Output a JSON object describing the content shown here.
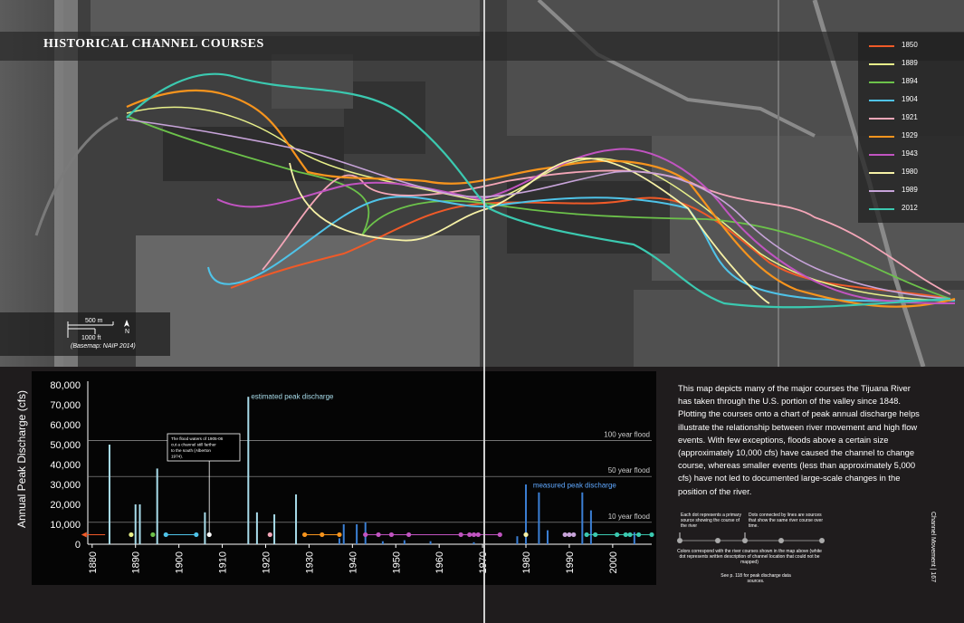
{
  "map": {
    "title": "HISTORICAL CHANNEL COURSES",
    "scale_m": "500 m",
    "scale_ft": "1000 ft",
    "north": "N",
    "basemap_note": "(Basemap: NAIP 2014)",
    "legend": [
      {
        "year": "1850",
        "color": "#f05a28"
      },
      {
        "year": "1889",
        "color": "#e8f08a"
      },
      {
        "year": "1894",
        "color": "#6cc24a"
      },
      {
        "year": "1904",
        "color": "#4fc3e8"
      },
      {
        "year": "1921",
        "color": "#f4a6b8"
      },
      {
        "year": "1929",
        "color": "#f7941d"
      },
      {
        "year": "1943",
        "color": "#c154c1"
      },
      {
        "year": "1980",
        "color": "#f6f1a6"
      },
      {
        "year": "1989",
        "color": "#c7a3d9"
      },
      {
        "year": "2012",
        "color": "#3bc9b0"
      }
    ]
  },
  "chart_data": {
    "type": "bar",
    "ylabel": "Annual Peak Discharge (cfs)",
    "y_ticks": [
      "0",
      "10,000",
      "20,000",
      "30,000",
      "40,000",
      "50,000",
      "60,000",
      "70,000",
      "80,000"
    ],
    "x_ticks": [
      "1880",
      "1890",
      "1900",
      "1910",
      "1920",
      "1930",
      "1940",
      "1950",
      "1960",
      "1970",
      "1980",
      "1990",
      "2000"
    ],
    "ylim": [
      0,
      80000
    ],
    "xlim": [
      1879,
      2009
    ],
    "flood_lines": [
      {
        "label": "100 year flood",
        "value": 52000
      },
      {
        "label": "50 year flood",
        "value": 34000
      },
      {
        "label": "10 year flood",
        "value": 11000
      }
    ],
    "annotations": {
      "estimated": "estimated peak discharge",
      "measured": "measured peak discharge",
      "flood_note": "The flood waters of 1905-06 cut a channel still farther to the south (Alberton 1974)."
    },
    "estimated_bars": [
      {
        "x": 1884,
        "y": 50000
      },
      {
        "x": 1890,
        "y": 20000
      },
      {
        "x": 1891,
        "y": 20000
      },
      {
        "x": 1895,
        "y": 38000
      },
      {
        "x": 1906,
        "y": 16000
      },
      {
        "x": 1916,
        "y": 74000
      },
      {
        "x": 1918,
        "y": 16000
      },
      {
        "x": 1922,
        "y": 15000
      },
      {
        "x": 1927,
        "y": 25000
      }
    ],
    "measured_bars": [
      {
        "x": 1937,
        "y": 3000
      },
      {
        "x": 1938,
        "y": 10000
      },
      {
        "x": 1941,
        "y": 10000
      },
      {
        "x": 1943,
        "y": 11000
      },
      {
        "x": 1947,
        "y": 1500
      },
      {
        "x": 1952,
        "y": 2000
      },
      {
        "x": 1958,
        "y": 1500
      },
      {
        "x": 1968,
        "y": 1000
      },
      {
        "x": 1978,
        "y": 4000
      },
      {
        "x": 1980,
        "y": 30000
      },
      {
        "x": 1983,
        "y": 26000
      },
      {
        "x": 1985,
        "y": 7000
      },
      {
        "x": 1993,
        "y": 26000
      },
      {
        "x": 1995,
        "y": 17000
      },
      {
        "x": 2005,
        "y": 6000
      }
    ],
    "course_points": [
      {
        "year": 1850,
        "color": "#f05a28"
      },
      {
        "year": 1889,
        "color": "#e8f08a"
      },
      {
        "year": 1894,
        "color": "#6cc24a"
      },
      {
        "year": 1897,
        "color": "#4fc3e8"
      },
      {
        "year": 1904,
        "color": "#4fc3e8"
      },
      {
        "year": 1907,
        "color": "#ffffff"
      },
      {
        "year": 1921,
        "color": "#f4a6b8"
      },
      {
        "year": 1929,
        "color": "#f7941d"
      },
      {
        "year": 1933,
        "color": "#f7941d"
      },
      {
        "year": 1937,
        "color": "#f7941d"
      },
      {
        "year": 1943,
        "color": "#c154c1"
      },
      {
        "year": 1946,
        "color": "#c154c1"
      },
      {
        "year": 1949,
        "color": "#c154c1"
      },
      {
        "year": 1953,
        "color": "#c154c1"
      },
      {
        "year": 1965,
        "color": "#c154c1"
      },
      {
        "year": 1967,
        "color": "#c154c1"
      },
      {
        "year": 1968,
        "color": "#c154c1"
      },
      {
        "year": 1969,
        "color": "#c154c1"
      },
      {
        "year": 1974,
        "color": "#c154c1"
      },
      {
        "year": 1980,
        "color": "#f6f1a6"
      },
      {
        "year": 1989,
        "color": "#c7a3d9"
      },
      {
        "year": 1990,
        "color": "#c7a3d9"
      },
      {
        "year": 1991,
        "color": "#c7a3d9"
      },
      {
        "year": 1994,
        "color": "#3bc9b0"
      },
      {
        "year": 1996,
        "color": "#3bc9b0"
      },
      {
        "year": 2001,
        "color": "#3bc9b0"
      },
      {
        "year": 2003,
        "color": "#3bc9b0"
      },
      {
        "year": 2004,
        "color": "#3bc9b0"
      },
      {
        "year": 2006,
        "color": "#3bc9b0"
      },
      {
        "year": 2009,
        "color": "#3bc9b0"
      }
    ]
  },
  "text": {
    "body": "This map depicts many of the major courses the Tijuana River has taken through the U.S. portion of the valley since 1848. Plotting the courses onto a chart of peak annual discharge helps illustrate the relationship between river movement and high flow events. With few exceptions, floods above a certain size (approximately 10,000 cfs) have caused the channel to change course, whereas smaller events (less than approximately 5,000 cfs) have not led to documented large-scale changes in the position of the river.",
    "key_dot": "Each dot represents a primary source showing the course of the river",
    "key_line": "Dots connected by lines are sources that show the same river course over time.",
    "key_colors": "Colors correspond with the river courses shown in the map above (white dot represents written description of channel location that could not be mapped)",
    "key_see": "See p. 118 for peak discharge data sources.",
    "side": "Channel Movement | 167"
  }
}
